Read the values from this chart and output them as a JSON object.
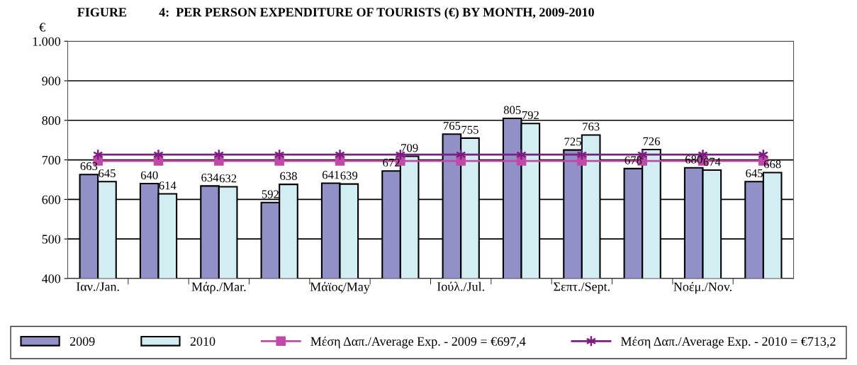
{
  "chart_data": {
    "type": "bar",
    "title": "FIGURE          4:  PER PERSON EXPENDITURE OF TOURISTS (€) BY MONTH, 2009-2010",
    "ylabel": "€",
    "categories": [
      "Ιαν./Jan.",
      null,
      "Μάρ./Mar.",
      null,
      "Μάϊος/May",
      null,
      "Ιούλ./Jul.",
      null,
      "Σεπτ./Sept.",
      null,
      "Νοέμ./Nov.",
      null
    ],
    "series": [
      {
        "name": "2009",
        "color": "#9191c8",
        "values": [
          663,
          640,
          634,
          592,
          641,
          672,
          765,
          805,
          725,
          678,
          680,
          645
        ],
        "value_labels": [
          "663",
          "640",
          "634",
          "592",
          "641",
          "672",
          "765",
          "805",
          "725",
          "678",
          "680",
          "645"
        ]
      },
      {
        "name": "2010",
        "color": "#d2eef2",
        "values": [
          645,
          614,
          632,
          638,
          639,
          709,
          755,
          792,
          763,
          726,
          674,
          668
        ],
        "value_labels": [
          "645",
          "614",
          "632",
          "638",
          "639",
          "709",
          "755",
          "792",
          "763",
          "726",
          "674",
          "668"
        ]
      },
      {
        "name": "Μέση Δαπ./Average Exp. - 2009 = €697,4",
        "type": "line",
        "color": "#c04aa8",
        "marker": "square",
        "values": [
          697.4,
          697.4,
          697.4,
          697.4,
          697.4,
          697.4,
          697.4,
          697.4,
          697.4,
          697.4,
          697.4,
          697.4
        ]
      },
      {
        "name": "Μέση Δαπ./Average Exp. - 2010 = €713,2",
        "type": "line",
        "color": "#7a1f80",
        "marker": "cross",
        "values": [
          713.2,
          713.2,
          713.2,
          713.2,
          713.2,
          713.2,
          713.2,
          713.2,
          713.2,
          713.2,
          713.2,
          713.2
        ]
      }
    ],
    "ylim": [
      400,
      1000
    ],
    "yticks": [
      400,
      500,
      600,
      700,
      800,
      900,
      {
        "value": 1000,
        "label": "1.000"
      }
    ],
    "grid": "y",
    "legend": "bottom"
  }
}
